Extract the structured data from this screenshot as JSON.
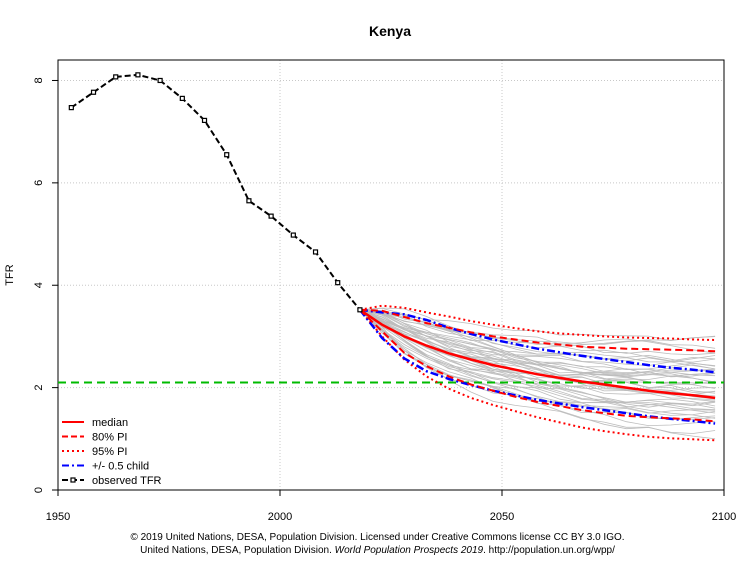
{
  "chart_data": {
    "type": "line",
    "title": "Kenya",
    "xlabel": "",
    "ylabel": "TFR",
    "xlim": [
      1950,
      2100
    ],
    "ylim": [
      0,
      8.4
    ],
    "x_ticks": [
      "1950",
      "2000",
      "2050",
      "2100"
    ],
    "y_ticks": [
      "0",
      "2",
      "4",
      "6",
      "8"
    ],
    "grid": true,
    "legend_position": "bottom-left",
    "reference_line": {
      "y": 2.1,
      "color": "#00bb00",
      "style": "dashed"
    },
    "legend": [
      {
        "label": "median",
        "color": "#ff0000",
        "style": "solid"
      },
      {
        "label": "80% PI",
        "color": "#ff0000",
        "style": "dashed"
      },
      {
        "label": "95% PI",
        "color": "#ff0000",
        "style": "dotted"
      },
      {
        "label": "+/- 0.5 child",
        "color": "#0000ff",
        "style": "dashdot"
      },
      {
        "label": "observed TFR",
        "color": "#000000",
        "style": "dashed-square"
      }
    ],
    "observed": {
      "x": [
        1953,
        1958,
        1963,
        1968,
        1973,
        1978,
        1983,
        1988,
        1993,
        1998,
        2003,
        2008,
        2013,
        2018
      ],
      "y": [
        7.47,
        7.77,
        8.07,
        8.11,
        8.0,
        7.65,
        7.22,
        6.55,
        5.65,
        5.35,
        4.98,
        4.65,
        4.05,
        3.52
      ]
    },
    "projection_x": [
      2018,
      2023,
      2028,
      2033,
      2038,
      2043,
      2048,
      2053,
      2058,
      2063,
      2068,
      2073,
      2078,
      2083,
      2088,
      2093,
      2098
    ],
    "median": [
      3.52,
      3.23,
      3.0,
      2.82,
      2.67,
      2.55,
      2.44,
      2.35,
      2.26,
      2.19,
      2.12,
      2.06,
      2.0,
      1.94,
      1.89,
      1.85,
      1.8
    ],
    "pi80_upper": [
      3.52,
      3.5,
      3.38,
      3.26,
      3.17,
      3.08,
      3.0,
      2.94,
      2.88,
      2.84,
      2.8,
      2.78,
      2.76,
      2.75,
      2.74,
      2.73,
      2.71
    ],
    "pi80_lower": [
      3.52,
      3.1,
      2.68,
      2.42,
      2.22,
      2.06,
      1.94,
      1.82,
      1.72,
      1.64,
      1.56,
      1.5,
      1.45,
      1.42,
      1.4,
      1.38,
      1.34
    ],
    "pi95_upper": [
      3.52,
      3.6,
      3.56,
      3.47,
      3.39,
      3.3,
      3.23,
      3.16,
      3.1,
      3.06,
      3.03,
      3.0,
      2.98,
      2.97,
      2.96,
      2.94,
      2.93
    ],
    "pi95_lower": [
      3.52,
      3.0,
      2.55,
      2.22,
      1.98,
      1.8,
      1.66,
      1.54,
      1.42,
      1.32,
      1.22,
      1.15,
      1.09,
      1.04,
      1.01,
      0.99,
      0.97
    ],
    "half_child_upper": [
      3.52,
      3.47,
      3.43,
      3.32,
      3.17,
      3.05,
      2.94,
      2.85,
      2.76,
      2.69,
      2.62,
      2.56,
      2.5,
      2.44,
      2.39,
      2.35,
      2.3
    ],
    "half_child_lower": [
      3.52,
      2.97,
      2.57,
      2.32,
      2.17,
      2.05,
      1.94,
      1.85,
      1.76,
      1.69,
      1.62,
      1.56,
      1.5,
      1.44,
      1.39,
      1.35,
      1.3
    ]
  },
  "footer": {
    "line1": "© 2019 United Nations, DESA, Population Division. Licensed under Creative Commons license CC BY 3.0 IGO.",
    "line2_prefix": "United Nations, DESA, Population Division. ",
    "line2_italic": "World Population Prospects 2019",
    "line2_suffix": ". http://population.un.org/wpp/"
  }
}
